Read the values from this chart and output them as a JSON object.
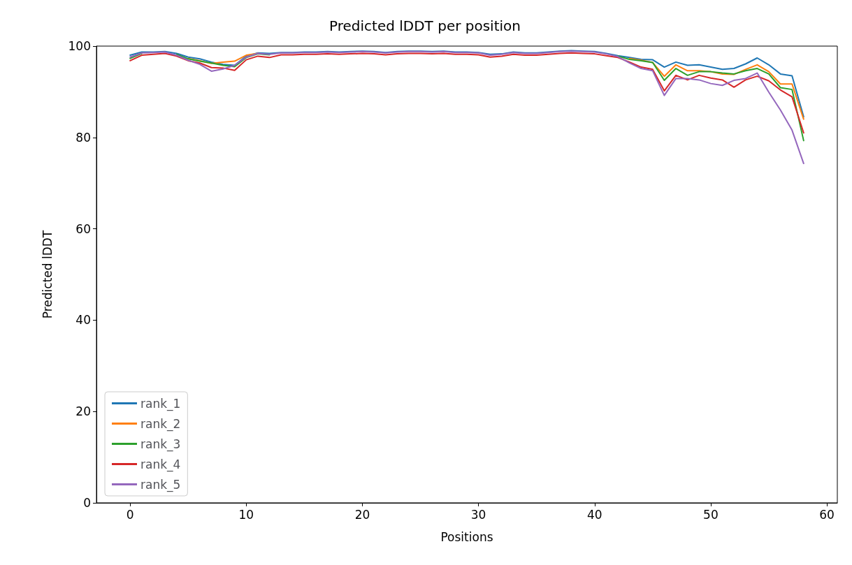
{
  "chart_data": {
    "type": "line",
    "title": "Predicted lDDT per position",
    "xlabel": "Positions",
    "ylabel": "Predicted lDDT",
    "x": [
      0,
      1,
      2,
      3,
      4,
      5,
      6,
      7,
      8,
      9,
      10,
      11,
      12,
      13,
      14,
      15,
      16,
      17,
      18,
      19,
      20,
      21,
      22,
      23,
      24,
      25,
      26,
      27,
      28,
      29,
      30,
      31,
      32,
      33,
      34,
      35,
      36,
      37,
      38,
      39,
      40,
      41,
      42,
      43,
      44,
      45,
      46,
      47,
      48,
      49,
      50,
      51,
      52,
      53,
      54,
      55,
      56,
      57,
      58
    ],
    "series": [
      {
        "name": "rank_1",
        "color": "#1f77b4",
        "values": [
          98.0,
          98.7,
          98.7,
          98.8,
          98.4,
          97.6,
          97.2,
          96.5,
          96.0,
          95.8,
          97.8,
          98.5,
          98.4,
          98.6,
          98.6,
          98.7,
          98.7,
          98.8,
          98.7,
          98.8,
          98.9,
          98.8,
          98.6,
          98.8,
          98.9,
          98.9,
          98.8,
          98.9,
          98.7,
          98.7,
          98.6,
          98.2,
          98.3,
          98.7,
          98.5,
          98.5,
          98.7,
          98.9,
          99.0,
          98.9,
          98.8,
          98.4,
          97.9,
          97.5,
          97.1,
          97.0,
          95.4,
          96.5,
          95.8,
          95.9,
          95.4,
          94.9,
          95.1,
          96.1,
          97.4,
          95.9,
          93.9,
          93.5,
          84.5
        ]
      },
      {
        "name": "rank_2",
        "color": "#ff7f0e",
        "values": [
          null,
          null,
          null,
          null,
          null,
          97.3,
          96.8,
          96.2,
          96.5,
          96.7,
          98.0,
          98.4,
          null,
          null,
          null,
          null,
          null,
          null,
          null,
          null,
          null,
          null,
          null,
          null,
          null,
          null,
          null,
          null,
          null,
          null,
          null,
          null,
          null,
          null,
          null,
          null,
          null,
          null,
          null,
          null,
          null,
          null,
          null,
          97.3,
          96.9,
          96.4,
          93.4,
          95.9,
          94.6,
          94.6,
          94.4,
          93.9,
          93.8,
          94.9,
          95.9,
          94.4,
          91.7,
          91.7,
          84.0
        ]
      },
      {
        "name": "rank_3",
        "color": "#2ca02c",
        "values": [
          97.3,
          98.4,
          null,
          null,
          98.2,
          97.2,
          96.7,
          96.3,
          95.8,
          95.5,
          97.5,
          98.3,
          98.1,
          null,
          null,
          null,
          null,
          null,
          null,
          null,
          null,
          null,
          null,
          null,
          null,
          null,
          null,
          null,
          null,
          null,
          null,
          null,
          null,
          null,
          null,
          null,
          null,
          null,
          null,
          null,
          null,
          null,
          97.8,
          97.1,
          96.8,
          96.4,
          92.5,
          95.1,
          93.6,
          94.4,
          94.4,
          94.1,
          93.9,
          94.6,
          95.1,
          93.9,
          90.9,
          90.5,
          79.3
        ]
      },
      {
        "name": "rank_4",
        "color": "#d62728",
        "values": [
          96.8,
          98.0,
          98.2,
          98.4,
          97.8,
          96.8,
          96.3,
          95.3,
          95.2,
          94.7,
          97.0,
          97.8,
          97.5,
          98.1,
          98.1,
          98.2,
          98.2,
          98.3,
          98.2,
          98.3,
          98.4,
          98.3,
          98.1,
          98.3,
          98.4,
          98.4,
          98.3,
          98.4,
          98.2,
          98.2,
          98.1,
          97.6,
          97.8,
          98.2,
          98.0,
          98.0,
          98.2,
          98.4,
          98.5,
          98.4,
          98.3,
          97.9,
          97.5,
          96.5,
          95.4,
          94.9,
          90.2,
          93.6,
          92.6,
          93.6,
          93.0,
          92.6,
          91.0,
          92.6,
          93.4,
          92.4,
          90.4,
          88.9,
          81.0
        ]
      },
      {
        "name": "rank_5",
        "color": "#9467bd",
        "values": [
          97.6,
          98.5,
          98.6,
          98.7,
          98.0,
          96.9,
          96.0,
          94.5,
          95.0,
          95.8,
          97.6,
          98.4,
          98.2,
          98.5,
          98.5,
          98.6,
          98.6,
          98.7,
          98.6,
          98.7,
          98.8,
          98.7,
          98.5,
          98.7,
          98.8,
          98.8,
          98.7,
          98.8,
          98.6,
          98.6,
          98.5,
          98.0,
          98.2,
          98.6,
          98.4,
          98.4,
          98.6,
          98.8,
          98.9,
          98.8,
          98.7,
          98.3,
          97.7,
          96.3,
          95.1,
          94.6,
          89.2,
          92.9,
          92.9,
          92.6,
          91.8,
          91.4,
          92.5,
          92.9,
          94.1,
          89.9,
          86.0,
          81.6,
          74.3
        ]
      }
    ],
    "xlim": [
      -2.9,
      60.9
    ],
    "xticks": [
      0,
      10,
      20,
      30,
      40,
      50,
      60
    ],
    "ylim": [
      0,
      100
    ],
    "yticks": [
      0,
      20,
      40,
      60,
      80,
      100
    ],
    "grid": false,
    "legend": "bottom left",
    "marker": "none",
    "line_style": "solid"
  }
}
